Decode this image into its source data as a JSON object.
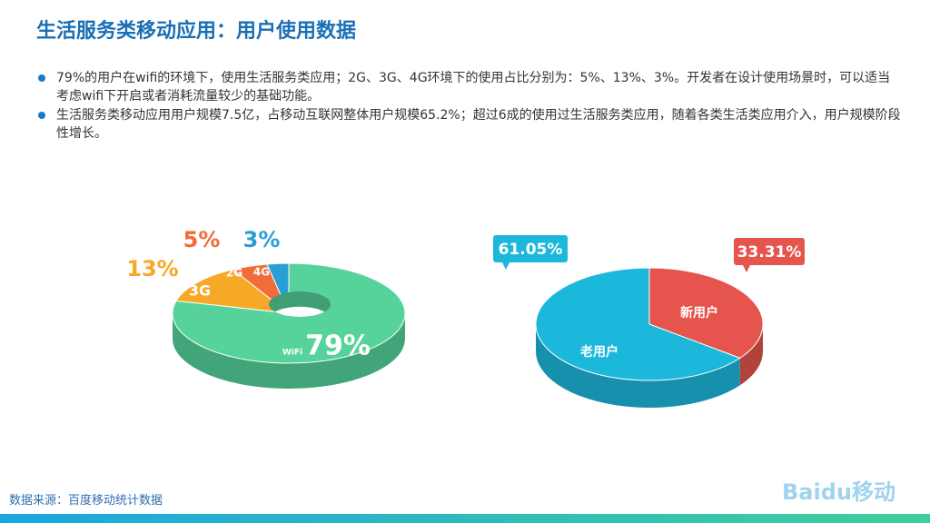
{
  "title": "生活服务类移动应用：用户使用数据",
  "bullets": [
    "79%的用户在wifi的环境下，使用生活服务类应用；2G、3G、4G环境下的使用占比分别为：5%、13%、3%。开发者在设计使用场景时，可以适当考虑wifi下开启或者消耗流量较少的基础功能。",
    "生活服务类移动应用用户规模7.5亿，占移动互联网整体用户规模65.2%；超过6成的使用过生活服务类应用，随着各类生活类应用介入，用户规模阶段性增长。"
  ],
  "source": "数据来源：百度移动统计数据",
  "logo": "Baidu移动",
  "chart_data": [
    {
      "type": "pie",
      "categories": [
        "WiFi",
        "3G",
        "2G",
        "4G"
      ],
      "values": [
        79,
        13,
        5,
        3
      ],
      "value_labels": [
        "79%",
        "13%",
        "5%",
        "3%"
      ],
      "colors": [
        "#55d39b",
        "#f7a827",
        "#f26c3a",
        "#2a9fd6"
      ]
    },
    {
      "type": "pie",
      "categories": [
        "新用户",
        "老用户"
      ],
      "values": [
        33.31,
        61.05
      ],
      "value_labels": [
        "33.31%",
        "61.05%"
      ],
      "colors": [
        "#e5544d",
        "#1cb8dc"
      ]
    }
  ]
}
